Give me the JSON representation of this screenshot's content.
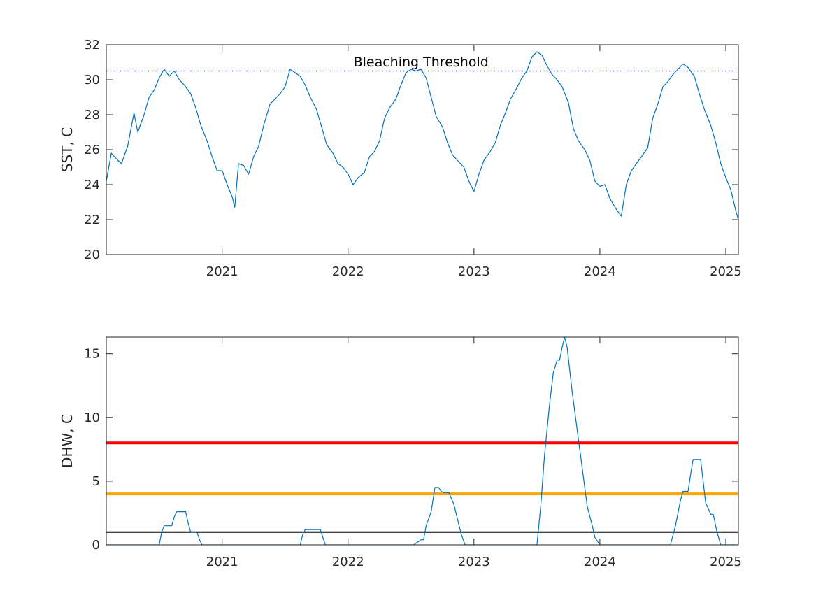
{
  "chart_data": [
    {
      "type": "line",
      "ylabel": "SST, C",
      "xlim": [
        2020.08,
        2025.1
      ],
      "ylim": [
        20,
        32
      ],
      "yticks": [
        20,
        22,
        24,
        26,
        28,
        30,
        32
      ],
      "xticks": [
        2021,
        2022,
        2023,
        2024,
        2025
      ],
      "grid": false,
      "series": [
        {
          "color": "#0072BD",
          "x": [
            2020.08,
            2020.12,
            2020.17,
            2020.2,
            2020.25,
            2020.3,
            2020.33,
            2020.38,
            2020.42,
            2020.46,
            2020.5,
            2020.54,
            2020.58,
            2020.62,
            2020.66,
            2020.7,
            2020.75,
            2020.79,
            2020.83,
            2020.88,
            2020.92,
            2020.96,
            2021.0,
            2021.04,
            2021.08,
            2021.1,
            2021.13,
            2021.17,
            2021.21,
            2021.25,
            2021.29,
            2021.33,
            2021.38,
            2021.42,
            2021.46,
            2021.5,
            2021.54,
            2021.58,
            2021.62,
            2021.66,
            2021.7,
            2021.75,
            2021.79,
            2021.83,
            2021.88,
            2021.92,
            2021.96,
            2022.0,
            2022.04,
            2022.08,
            2022.13,
            2022.17,
            2022.21,
            2022.25,
            2022.29,
            2022.33,
            2022.38,
            2022.42,
            2022.46,
            2022.5,
            2022.54,
            2022.58,
            2022.62,
            2022.66,
            2022.7,
            2022.75,
            2022.79,
            2022.83,
            2022.88,
            2022.92,
            2022.96,
            2023.0,
            2023.04,
            2023.08,
            2023.13,
            2023.17,
            2023.21,
            2023.25,
            2023.29,
            2023.33,
            2023.38,
            2023.42,
            2023.46,
            2023.5,
            2023.54,
            2023.58,
            2023.62,
            2023.66,
            2023.7,
            2023.75,
            2023.79,
            2023.83,
            2023.88,
            2023.92,
            2023.96,
            2024.0,
            2024.04,
            2024.08,
            2024.13,
            2024.17,
            2024.21,
            2024.25,
            2024.29,
            2024.33,
            2024.38,
            2024.42,
            2024.46,
            2024.5,
            2024.54,
            2024.58,
            2024.62,
            2024.66,
            2024.7,
            2024.75,
            2024.79,
            2024.83,
            2024.88,
            2024.92,
            2024.96,
            2025.0,
            2025.04,
            2025.08,
            2025.1
          ],
          "values": [
            24.2,
            25.8,
            25.4,
            25.2,
            26.2,
            28.1,
            27.0,
            28.0,
            29.0,
            29.4,
            30.1,
            30.6,
            30.2,
            30.5,
            30.0,
            29.7,
            29.2,
            28.4,
            27.4,
            26.5,
            25.6,
            24.8,
            24.8,
            24.0,
            23.3,
            22.7,
            25.2,
            25.1,
            24.6,
            25.6,
            26.2,
            27.4,
            28.6,
            28.9,
            29.2,
            29.6,
            30.6,
            30.4,
            30.2,
            29.7,
            29.0,
            28.3,
            27.3,
            26.3,
            25.8,
            25.2,
            25.0,
            24.6,
            24.0,
            24.4,
            24.7,
            25.6,
            25.9,
            26.5,
            27.8,
            28.4,
            28.9,
            29.7,
            30.4,
            30.6,
            30.5,
            30.6,
            30.1,
            29.0,
            27.9,
            27.3,
            26.4,
            25.7,
            25.3,
            25.0,
            24.2,
            23.6,
            24.6,
            25.4,
            25.9,
            26.4,
            27.4,
            28.1,
            28.9,
            29.4,
            30.1,
            30.5,
            31.3,
            31.6,
            31.4,
            30.8,
            30.3,
            30.0,
            29.6,
            28.7,
            27.2,
            26.5,
            26.0,
            25.4,
            24.2,
            23.9,
            24.0,
            23.2,
            22.6,
            22.2,
            24.0,
            24.8,
            25.2,
            25.6,
            26.1,
            27.8,
            28.6,
            29.6,
            29.9,
            30.3,
            30.6,
            30.9,
            30.7,
            30.2,
            29.2,
            28.3,
            27.4,
            26.4,
            25.2,
            24.4,
            23.7,
            22.5,
            22.0
          ]
        }
      ],
      "annotations": [
        {
          "text": "Bleaching Threshold",
          "x": 2022.58,
          "y": 31.0
        }
      ],
      "reference_lines": [
        {
          "orientation": "horizontal",
          "value": 30.5,
          "color": "#0000CC",
          "style": "dotted"
        }
      ]
    },
    {
      "type": "line",
      "ylabel": "DHW, C",
      "xlim": [
        2020.08,
        2025.1
      ],
      "ylim": [
        0,
        16.3
      ],
      "yticks": [
        0,
        5,
        10,
        15
      ],
      "xticks": [
        2021,
        2022,
        2023,
        2024,
        2025
      ],
      "grid": false,
      "series": [
        {
          "color": "#0072BD",
          "x": [
            2020.08,
            2020.5,
            2020.52,
            2020.54,
            2020.6,
            2020.62,
            2020.64,
            2020.71,
            2020.73,
            2020.75,
            2020.8,
            2020.82,
            2020.84,
            2021.0,
            2021.5,
            2021.62,
            2021.64,
            2021.66,
            2021.78,
            2021.8,
            2021.82,
            2022.0,
            2022.5,
            2022.52,
            2022.58,
            2022.6,
            2022.62,
            2022.66,
            2022.69,
            2022.72,
            2022.74,
            2022.76,
            2022.8,
            2022.84,
            2022.86,
            2022.9,
            2022.93,
            2023.0,
            2023.3,
            2023.5,
            2023.53,
            2023.56,
            2023.6,
            2023.63,
            2023.66,
            2023.68,
            2023.7,
            2023.72,
            2023.74,
            2023.78,
            2023.82,
            2023.86,
            2023.9,
            2023.94,
            2023.96,
            2024.0,
            2024.3,
            2024.56,
            2024.6,
            2024.64,
            2024.66,
            2024.7,
            2024.72,
            2024.74,
            2024.8,
            2024.82,
            2024.84,
            2024.88,
            2024.9,
            2024.93,
            2024.96,
            2025.0,
            2025.04,
            2025.1
          ],
          "values": [
            0,
            0,
            1.0,
            1.5,
            1.5,
            2.2,
            2.6,
            2.6,
            1.7,
            1.0,
            1.0,
            0.4,
            0,
            0,
            0,
            0,
            0.8,
            1.2,
            1.2,
            0.6,
            0,
            0,
            0,
            0,
            0.4,
            0.4,
            1.5,
            2.6,
            4.5,
            4.5,
            4.2,
            4.1,
            4.1,
            3.2,
            2.4,
            0.8,
            0,
            0,
            0,
            0,
            3.0,
            7.0,
            11.0,
            13.5,
            14.5,
            14.5,
            15.5,
            16.3,
            15.5,
            12.0,
            9.0,
            6.0,
            3.0,
            1.5,
            0.6,
            0,
            0,
            0,
            1.5,
            3.5,
            4.2,
            4.2,
            5.5,
            6.7,
            6.7,
            5.0,
            3.3,
            2.4,
            2.4,
            1.0,
            0,
            0,
            0,
            0
          ]
        }
      ],
      "reference_lines": [
        {
          "orientation": "horizontal",
          "value": 8,
          "color": "#FF0000"
        },
        {
          "orientation": "horizontal",
          "value": 4,
          "color": "#FFA500"
        },
        {
          "orientation": "horizontal",
          "value": 1,
          "color": "#000000"
        }
      ]
    }
  ]
}
